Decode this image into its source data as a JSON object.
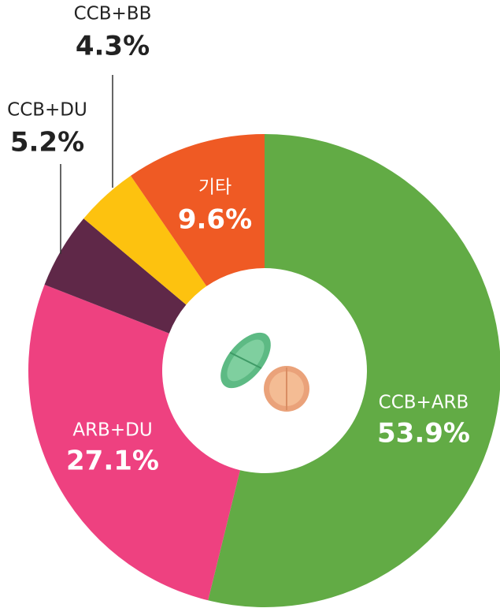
{
  "chart_data": {
    "type": "donut",
    "categories": [
      "CCB+ARB",
      "ARB+DU",
      "CCB+DU",
      "CCB+BB",
      "기타"
    ],
    "values": [
      53.9,
      27.1,
      5.2,
      4.3,
      9.6
    ],
    "value_labels": [
      "53.9%",
      "27.1%",
      "5.2%",
      "4.3%",
      "9.6%"
    ],
    "colors": [
      "#62ab45",
      "#ee4180",
      "#5f2848",
      "#fdc20f",
      "#ef5a24"
    ]
  }
}
